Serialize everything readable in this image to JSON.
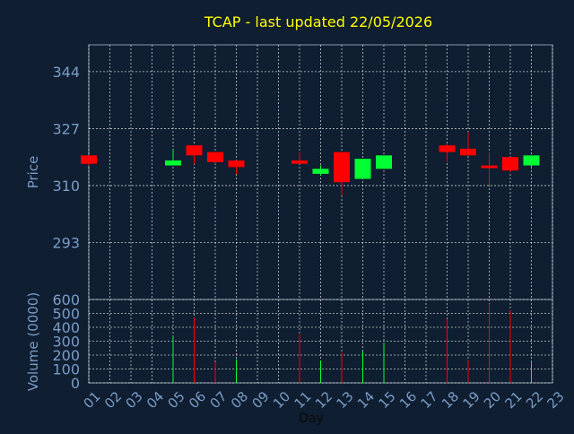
{
  "title": "TCAP - last updated 22/05/2026",
  "colors": {
    "background": "#0f1e30",
    "title": "#ffff00",
    "axis_text": "#7a9cc8",
    "label_text": "#0a0a0a",
    "grid": "#ffffff",
    "up": "#00ff33",
    "down": "#ff0000"
  },
  "chart_data": [
    {
      "type": "candlestick",
      "ylabel": "Price",
      "yticks": [
        344,
        327,
        310,
        293
      ],
      "ylim": [
        276,
        352
      ],
      "grid": true,
      "candles": [
        {
          "day": 1,
          "open": 319,
          "high": 319,
          "low": 316,
          "close": 316.5
        },
        {
          "day": 5,
          "open": 316,
          "high": 321,
          "low": 316,
          "close": 317.5
        },
        {
          "day": 6,
          "open": 322,
          "high": 322,
          "low": 316.5,
          "close": 319
        },
        {
          "day": 7,
          "open": 320,
          "high": 320,
          "low": 316.5,
          "close": 317
        },
        {
          "day": 8,
          "open": 317.5,
          "high": 317.5,
          "low": 313.5,
          "close": 315.5
        },
        {
          "day": 11,
          "open": 317.5,
          "high": 320,
          "low": 316.5,
          "close": 316.5
        },
        {
          "day": 12,
          "open": 313.5,
          "high": 316,
          "low": 313,
          "close": 315
        },
        {
          "day": 13,
          "open": 320,
          "high": 320,
          "low": 307,
          "close": 311
        },
        {
          "day": 14,
          "open": 312,
          "high": 317.5,
          "low": 312,
          "close": 318
        },
        {
          "day": 15,
          "open": 315,
          "high": 319,
          "low": 315,
          "close": 319
        },
        {
          "day": 18,
          "open": 322,
          "high": 322.5,
          "low": 317,
          "close": 320
        },
        {
          "day": 19,
          "open": 321,
          "high": 326,
          "low": 319,
          "close": 319
        },
        {
          "day": 20,
          "open": 316,
          "high": 320,
          "low": 310,
          "close": 315.5
        },
        {
          "day": 21,
          "open": 318.5,
          "high": 318.5,
          "low": 314,
          "close": 314.5
        },
        {
          "day": 22,
          "open": 316,
          "high": 319,
          "low": 315,
          "close": 319
        }
      ]
    },
    {
      "type": "bar",
      "ylabel": "Volume (0000)",
      "xlabel": "Day",
      "yticks": [
        600,
        500,
        400,
        300,
        200,
        100,
        0
      ],
      "ylim": [
        0,
        600
      ],
      "grid": true,
      "bars": [
        {
          "day": 5,
          "value": 340,
          "direction": "up"
        },
        {
          "day": 6,
          "value": 470,
          "direction": "down"
        },
        {
          "day": 7,
          "value": 150,
          "direction": "down"
        },
        {
          "day": 8,
          "value": 170,
          "direction": "up"
        },
        {
          "day": 11,
          "value": 350,
          "direction": "down"
        },
        {
          "day": 12,
          "value": 160,
          "direction": "up"
        },
        {
          "day": 13,
          "value": 220,
          "direction": "down"
        },
        {
          "day": 14,
          "value": 230,
          "direction": "up"
        },
        {
          "day": 15,
          "value": 290,
          "direction": "up"
        },
        {
          "day": 18,
          "value": 460,
          "direction": "down"
        },
        {
          "day": 19,
          "value": 160,
          "direction": "down"
        },
        {
          "day": 20,
          "value": 570,
          "direction": "down"
        },
        {
          "day": 21,
          "value": 520,
          "direction": "down"
        },
        {
          "day": 22,
          "value": 160,
          "direction": "up"
        }
      ]
    }
  ],
  "x_axis": {
    "ticks": [
      "01",
      "02",
      "03",
      "04",
      "05",
      "06",
      "07",
      "08",
      "09",
      "10",
      "11",
      "12",
      "13",
      "14",
      "15",
      "16",
      "17",
      "18",
      "19",
      "20",
      "21",
      "22",
      "23"
    ]
  }
}
